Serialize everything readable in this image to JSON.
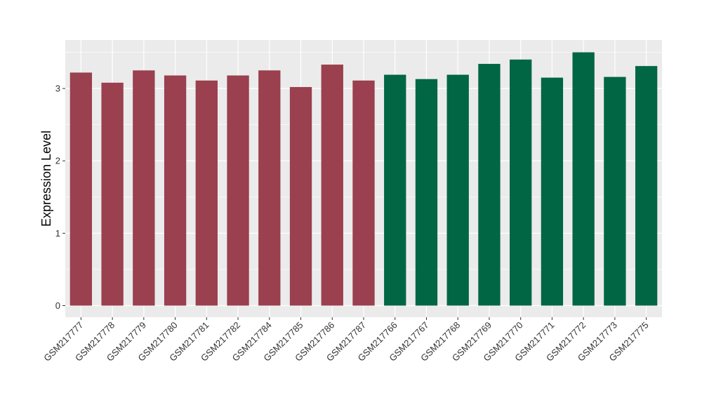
{
  "chart_data": {
    "type": "bar",
    "title": "",
    "xlabel": "",
    "ylabel": "Expression Level",
    "ylim": [
      -0.16,
      3.67
    ],
    "yticks": [
      0,
      1,
      2,
      3
    ],
    "grid": true,
    "legend": "none",
    "categories": [
      "GSM217777",
      "GSM217778",
      "GSM217779",
      "GSM217780",
      "GSM217781",
      "GSM217782",
      "GSM217784",
      "GSM217785",
      "GSM217786",
      "GSM217787",
      "GSM217766",
      "GSM217767",
      "GSM217768",
      "GSM217769",
      "GSM217770",
      "GSM217771",
      "GSM217772",
      "GSM217773",
      "GSM217775"
    ],
    "values": [
      3.22,
      3.08,
      3.25,
      3.18,
      3.11,
      3.18,
      3.25,
      3.02,
      3.33,
      3.11,
      3.19,
      3.13,
      3.19,
      3.34,
      3.4,
      3.15,
      3.5,
      3.16,
      3.31
    ],
    "groups": [
      0,
      0,
      0,
      0,
      0,
      0,
      0,
      0,
      0,
      0,
      1,
      1,
      1,
      1,
      1,
      1,
      1,
      1,
      1
    ],
    "colors": [
      "#9a404e",
      "#006644"
    ],
    "background": "#ebebeb",
    "gridline_color": "#ffffff"
  }
}
